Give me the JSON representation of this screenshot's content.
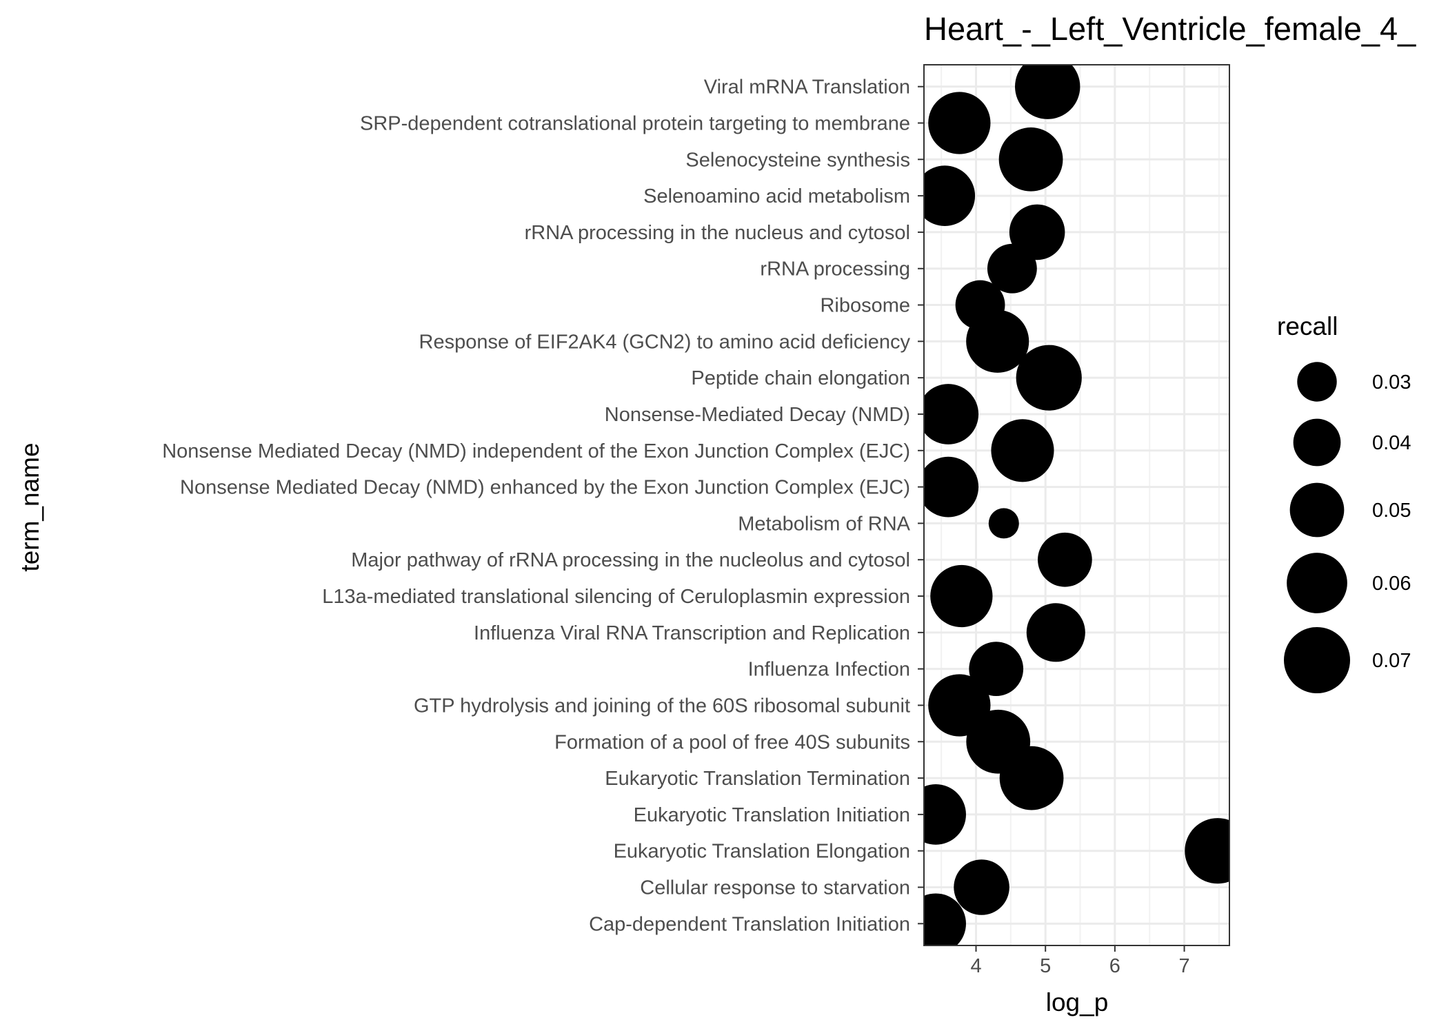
{
  "chart_data": {
    "type": "scatter",
    "title": "Heart_-_Left_Ventricle_female_4_",
    "xlabel": "log_p",
    "ylabel": "term_name",
    "xlim": [
      3.25,
      7.65
    ],
    "xticks": [
      4,
      5,
      6,
      7
    ],
    "grid": true,
    "legend_position": "right",
    "size_legend": {
      "title": "recall",
      "breaks": [
        0.03,
        0.04,
        0.05,
        0.06,
        0.07
      ],
      "labels": [
        "0.03",
        "0.04",
        "0.05",
        "0.06",
        "0.07"
      ]
    },
    "points": [
      {
        "term": "Viral mRNA Translation",
        "log_p": 5.03,
        "recall": 0.068
      },
      {
        "term": "SRP-dependent cotranslational protein targeting to membrane",
        "log_p": 3.76,
        "recall": 0.063
      },
      {
        "term": "Selenocysteine synthesis",
        "log_p": 4.79,
        "recall": 0.066
      },
      {
        "term": "Selenoamino acid metabolism",
        "log_p": 3.55,
        "recall": 0.06
      },
      {
        "term": "rRNA processing in the nucleus and cytosol",
        "log_p": 4.88,
        "recall": 0.052
      },
      {
        "term": "rRNA processing",
        "log_p": 4.52,
        "recall": 0.043
      },
      {
        "term": "Ribosome",
        "log_p": 4.06,
        "recall": 0.043
      },
      {
        "term": "Response of EIF2AK4 (GCN2) to amino acid deficiency",
        "log_p": 4.31,
        "recall": 0.064
      },
      {
        "term": "Peptide chain elongation",
        "log_p": 5.05,
        "recall": 0.069
      },
      {
        "term": "Nonsense-Mediated Decay (NMD)",
        "log_p": 3.6,
        "recall": 0.06
      },
      {
        "term": "Nonsense Mediated Decay (NMD) independent of the Exon Junction Complex (EJC)",
        "log_p": 4.67,
        "recall": 0.064
      },
      {
        "term": "Nonsense Mediated Decay (NMD) enhanced by the Exon Junction Complex (EJC)",
        "log_p": 3.6,
        "recall": 0.06
      },
      {
        "term": "Metabolism of RNA",
        "log_p": 4.4,
        "recall": 0.02
      },
      {
        "term": "Major pathway of rRNA processing in the nucleolus and cytosol",
        "log_p": 5.28,
        "recall": 0.05
      },
      {
        "term": "L13a-mediated translational silencing of Ceruloplasmin expression",
        "log_p": 3.79,
        "recall": 0.063
      },
      {
        "term": "Influenza Viral RNA Transcription and Replication",
        "log_p": 5.15,
        "recall": 0.057
      },
      {
        "term": "Influenza Infection",
        "log_p": 4.29,
        "recall": 0.05
      },
      {
        "term": "GTP hydrolysis and joining of the 60S ribosomal subunit",
        "log_p": 3.76,
        "recall": 0.063
      },
      {
        "term": "Formation of a pool of free 40S subunits",
        "log_p": 4.32,
        "recall": 0.066
      },
      {
        "term": "Eukaryotic Translation Termination",
        "log_p": 4.8,
        "recall": 0.066
      },
      {
        "term": "Eukaryotic Translation Initiation",
        "log_p": 3.42,
        "recall": 0.06
      },
      {
        "term": "Eukaryotic Translation Elongation",
        "log_p": 7.48,
        "recall": 0.069
      },
      {
        "term": "Cellular response to starvation",
        "log_p": 4.08,
        "recall": 0.052
      },
      {
        "term": "Cap-dependent Translation Initiation",
        "log_p": 3.42,
        "recall": 0.06
      }
    ]
  }
}
